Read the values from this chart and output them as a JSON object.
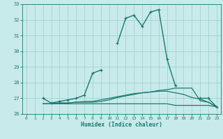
{
  "xlabel": "Humidex (Indice chaleur)",
  "x_values": [
    0,
    1,
    2,
    3,
    4,
    5,
    6,
    7,
    8,
    9,
    10,
    11,
    12,
    13,
    14,
    15,
    16,
    17,
    18,
    19,
    20,
    21,
    22,
    23
  ],
  "line1": [
    null,
    null,
    27.0,
    null,
    null,
    null,
    null,
    null,
    null,
    null,
    null,
    null,
    null,
    null,
    null,
    null,
    null,
    null,
    null,
    null,
    null,
    null,
    null,
    null
  ],
  "line_main": [
    null,
    null,
    27.0,
    26.7,
    26.8,
    26.9,
    27.0,
    27.2,
    28.6,
    28.8,
    null,
    30.5,
    32.1,
    32.3,
    31.6,
    32.5,
    32.65,
    29.5,
    27.8,
    null,
    null,
    27.0,
    27.0,
    26.45
  ],
  "line_avg": [
    null,
    null,
    26.65,
    26.65,
    26.7,
    26.7,
    26.75,
    26.75,
    26.75,
    26.8,
    26.9,
    27.05,
    27.15,
    27.25,
    27.35,
    27.4,
    27.5,
    27.55,
    27.65,
    27.65,
    27.65,
    26.85,
    26.75,
    26.45
  ],
  "line_min": [
    null,
    null,
    26.65,
    26.65,
    26.65,
    26.65,
    26.65,
    26.65,
    26.65,
    26.65,
    26.65,
    26.65,
    26.65,
    26.65,
    26.65,
    26.65,
    26.65,
    26.65,
    26.55,
    26.55,
    26.55,
    26.55,
    26.55,
    26.45
  ],
  "line_med": [
    null,
    null,
    26.65,
    26.65,
    26.7,
    26.7,
    26.75,
    26.8,
    26.8,
    26.9,
    27.0,
    27.1,
    27.2,
    27.3,
    27.35,
    27.4,
    27.45,
    27.45,
    27.35,
    27.25,
    27.05,
    26.95,
    26.75,
    26.45
  ],
  "ylim": [
    26.0,
    33.0
  ],
  "xlim": [
    -0.5,
    23.5
  ],
  "yticks": [
    26,
    27,
    28,
    29,
    30,
    31,
    32,
    33
  ],
  "xticks": [
    0,
    1,
    2,
    3,
    4,
    5,
    6,
    7,
    8,
    9,
    10,
    11,
    12,
    13,
    14,
    15,
    16,
    17,
    18,
    19,
    20,
    21,
    22,
    23
  ],
  "line_color": "#1a7a6e",
  "bg_color": "#c8eaea",
  "grid_color": "#9ecece"
}
